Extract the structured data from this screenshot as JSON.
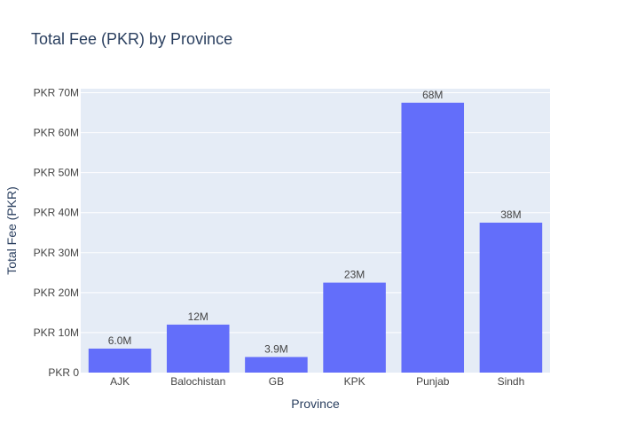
{
  "chart_data": {
    "type": "bar",
    "title": "Total  Fee (PKR) by Province",
    "xlabel": "Province",
    "ylabel": "Total Fee (PKR)",
    "categories": [
      "AJK",
      "Balochistan",
      "GB",
      "KPK",
      "Punjab",
      "Sindh"
    ],
    "values": [
      6000000,
      12000000,
      3900000,
      22500000,
      67500000,
      37500000
    ],
    "data_labels": [
      "6.0M",
      "12M",
      "3.9M",
      "23M",
      "68M",
      "38M"
    ],
    "ylim": [
      0,
      71000000
    ],
    "y_ticks": [
      0,
      10000000,
      20000000,
      30000000,
      40000000,
      50000000,
      60000000,
      70000000
    ],
    "y_tick_labels": [
      "PKR 0",
      "PKR 10M",
      "PKR 20M",
      "PKR 30M",
      "PKR 40M",
      "PKR 50M",
      "PKR 60M",
      "PKR 70M"
    ],
    "grid": true,
    "legend": "none",
    "colors": {
      "bar": "#636efa",
      "plot_background": "#e5ecf6",
      "grid": "#ffffff",
      "text": "#2a3f5f",
      "axis_text": "#444444"
    }
  }
}
